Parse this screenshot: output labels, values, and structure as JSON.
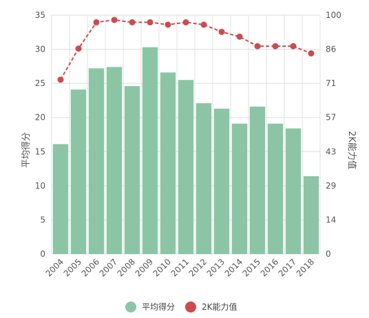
{
  "chart_data": {
    "type": "bar",
    "categories": [
      "2004",
      "2005",
      "2006",
      "2007",
      "2008",
      "2009",
      "2010",
      "2011",
      "2012",
      "2013",
      "2014",
      "2015",
      "2016",
      "2017",
      "2018"
    ],
    "series": [
      {
        "name": "平均得分",
        "type": "bar",
        "axis": "left",
        "color": "#8cc5a5",
        "values": [
          16.1,
          24.1,
          27.2,
          27.4,
          24.6,
          30.3,
          26.6,
          25.5,
          22.1,
          21.3,
          19.1,
          21.6,
          19.1,
          18.4,
          11.4
        ]
      },
      {
        "name": "2K能力值",
        "type": "line",
        "axis": "right",
        "color": "#cd4b4b",
        "values": [
          73,
          86,
          97,
          98,
          97,
          97,
          96,
          97,
          96,
          93,
          91,
          87,
          87,
          87,
          84
        ]
      }
    ],
    "ylabel": "平均得分",
    "y2label": "2K能力值",
    "ylim": [
      0,
      35
    ],
    "y2lim": [
      0,
      100
    ],
    "yticks": [
      "0",
      "5",
      "10",
      "15",
      "20",
      "25",
      "30",
      "35"
    ],
    "y2ticks": [
      "0",
      "14",
      "29",
      "43",
      "57",
      "71",
      "86",
      "100"
    ],
    "grid": true,
    "legend_position": "bottom"
  }
}
